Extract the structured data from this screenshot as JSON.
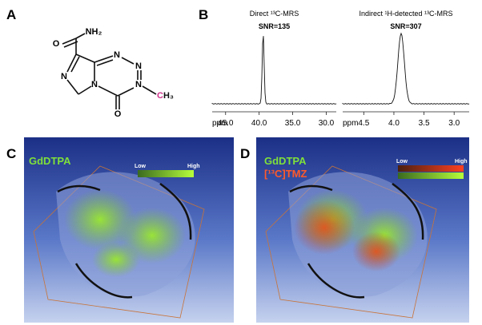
{
  "panels": [
    "A",
    "B",
    "C",
    "D"
  ],
  "molecule": {
    "atoms": [
      "O",
      "NH₂",
      "N",
      "N",
      "N",
      "N",
      "N",
      "O",
      "CH₃"
    ]
  },
  "spectra": [
    {
      "title": "Direct ¹³C-MRS",
      "snr": "SNR=135",
      "axis_label": "ppm",
      "xlim": [
        47,
        28.5
      ],
      "xticks": [
        {
          "value": 45,
          "label": "45.0"
        },
        {
          "value": 40,
          "label": "40.0"
        },
        {
          "value": 35,
          "label": "35.0"
        },
        {
          "value": 30,
          "label": "30.0"
        }
      ],
      "peak": 39.4
    },
    {
      "title": "Indirect ¹H-detected ¹³C-MRS",
      "snr": "SNR=307",
      "axis_label": "ppm",
      "xlim": [
        4.85,
        2.75
      ],
      "xticks": [
        {
          "value": 4.5,
          "label": "4.5"
        },
        {
          "value": 4.0,
          "label": "4.0"
        },
        {
          "value": 3.5,
          "label": "3.5"
        },
        {
          "value": 3.0,
          "label": "3.0"
        }
      ],
      "peak": 3.88
    }
  ],
  "images": [
    {
      "labels": [
        "GdDTPA"
      ],
      "scale": {
        "low": "Low",
        "high": "High"
      }
    },
    {
      "labels": [
        "GdDTPA",
        "[¹³C]TMZ"
      ],
      "scale": {
        "low": "Low",
        "high": "High"
      }
    }
  ]
}
